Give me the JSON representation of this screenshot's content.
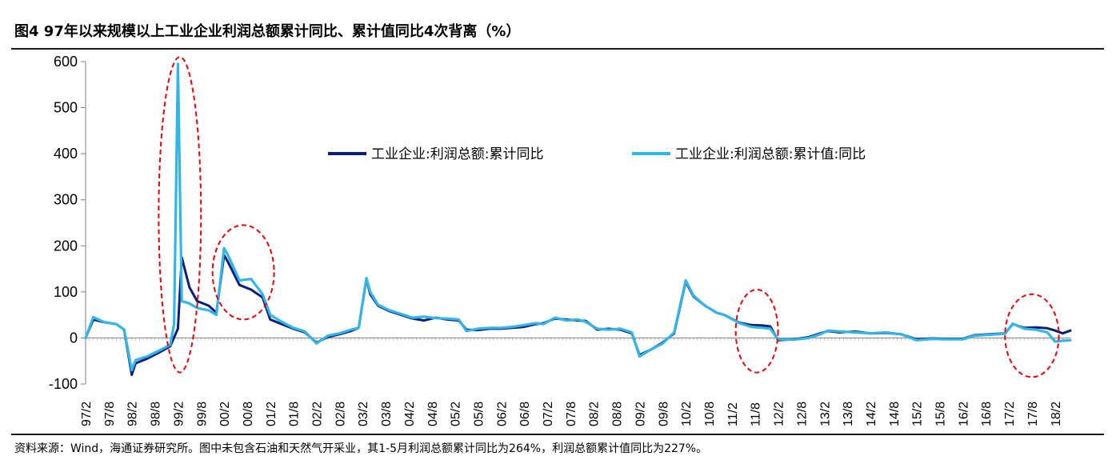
{
  "title": "图4  97年以来规模以上工业企业利润总额累计同比、累计值同比4次背离（%）",
  "source": "资料来源：Wind，海通证券研究所。图中未包含石油和天然气开采业，其1-5月利润总额累计同比为264%，利润总额累计值同比为227%。",
  "chart_data": {
    "type": "line",
    "title": "图4  97年以来规模以上工业企业利润总额累计同比、累计值同比4次背离（%）",
    "ylim": [
      -100,
      600
    ],
    "yticks": [
      600,
      500,
      400,
      300,
      200,
      100,
      0,
      -100
    ],
    "ytick_labels": [
      "600",
      "500",
      "400",
      "300",
      "200",
      "100",
      "0",
      "-100"
    ],
    "xlim": [
      "1997-02",
      "2018-06"
    ],
    "xtick_labels": [
      "97/2",
      "97/8",
      "98/2",
      "98/8",
      "99/2",
      "99/8",
      "00/2",
      "00/8",
      "01/2",
      "01/8",
      "02/2",
      "02/8",
      "03/2",
      "03/8",
      "04/2",
      "04/8",
      "05/2",
      "05/8",
      "06/2",
      "06/8",
      "07/2",
      "07/8",
      "08/2",
      "08/8",
      "09/2",
      "09/8",
      "10/2",
      "10/8",
      "11/2",
      "11/8",
      "12/2",
      "12/8",
      "13/2",
      "13/8",
      "14/2",
      "14/8",
      "15/2",
      "15/8",
      "16/2",
      "16/8",
      "17/2",
      "17/8",
      "18/2"
    ],
    "legend_position": "top-right",
    "grid": false,
    "series": [
      {
        "name": "工业企业:利润总额:累计同比",
        "color": "#0b1f7a",
        "points": [
          [
            "1997-02",
            0
          ],
          [
            "1997-04",
            40
          ],
          [
            "1997-07",
            34
          ],
          [
            "1997-10",
            30
          ],
          [
            "1997-12",
            18
          ],
          [
            "1998-02",
            -80
          ],
          [
            "1998-03",
            -55
          ],
          [
            "1998-06",
            -45
          ],
          [
            "1998-09",
            -32
          ],
          [
            "1998-12",
            -18
          ],
          [
            "1999-02",
            20
          ],
          [
            "1999-03",
            175
          ],
          [
            "1999-05",
            110
          ],
          [
            "1999-07",
            80
          ],
          [
            "1999-10",
            70
          ],
          [
            "1999-12",
            55
          ],
          [
            "2000-02",
            180
          ],
          [
            "2000-03",
            165
          ],
          [
            "2000-06",
            115
          ],
          [
            "2000-09",
            105
          ],
          [
            "2000-12",
            88
          ],
          [
            "2001-02",
            40
          ],
          [
            "2001-05",
            30
          ],
          [
            "2001-08",
            20
          ],
          [
            "2001-11",
            12
          ],
          [
            "2002-02",
            -10
          ],
          [
            "2002-05",
            2
          ],
          [
            "2002-08",
            8
          ],
          [
            "2002-11",
            15
          ],
          [
            "2003-01",
            22
          ],
          [
            "2003-03",
            128
          ],
          [
            "2003-04",
            95
          ],
          [
            "2003-06",
            70
          ],
          [
            "2003-09",
            58
          ],
          [
            "2003-12",
            50
          ],
          [
            "2004-03",
            42
          ],
          [
            "2004-06",
            38
          ],
          [
            "2004-09",
            44
          ],
          [
            "2004-12",
            40
          ],
          [
            "2005-03",
            38
          ],
          [
            "2005-05",
            18
          ],
          [
            "2005-08",
            17
          ],
          [
            "2005-11",
            20
          ],
          [
            "2006-02",
            20
          ],
          [
            "2006-05",
            22
          ],
          [
            "2006-08",
            24
          ],
          [
            "2006-11",
            30
          ],
          [
            "2007-01",
            32
          ],
          [
            "2007-04",
            42
          ],
          [
            "2007-07",
            40
          ],
          [
            "2007-10",
            38
          ],
          [
            "2007-12",
            37
          ],
          [
            "2008-03",
            18
          ],
          [
            "2008-06",
            20
          ],
          [
            "2008-09",
            18
          ],
          [
            "2008-12",
            10
          ],
          [
            "2009-02",
            -37
          ],
          [
            "2009-05",
            -25
          ],
          [
            "2009-08",
            -10
          ],
          [
            "2009-11",
            10
          ],
          [
            "2010-02",
            122
          ],
          [
            "2010-04",
            90
          ],
          [
            "2010-07",
            70
          ],
          [
            "2010-10",
            55
          ],
          [
            "2010-12",
            50
          ],
          [
            "2011-04",
            33
          ],
          [
            "2011-07",
            28
          ],
          [
            "2011-10",
            27
          ],
          [
            "2011-12",
            25
          ],
          [
            "2012-02",
            -5
          ],
          [
            "2012-06",
            -3
          ],
          [
            "2012-10",
            2
          ],
          [
            "2013-01",
            10
          ],
          [
            "2013-03",
            15
          ],
          [
            "2013-06",
            12
          ],
          [
            "2013-10",
            14
          ],
          [
            "2014-02",
            10
          ],
          [
            "2014-06",
            11
          ],
          [
            "2014-10",
            8
          ],
          [
            "2015-02",
            -3
          ],
          [
            "2015-06",
            -1
          ],
          [
            "2015-10",
            -2
          ],
          [
            "2016-02",
            -2
          ],
          [
            "2016-05",
            6
          ],
          [
            "2016-09",
            8
          ],
          [
            "2017-01",
            10
          ],
          [
            "2017-03",
            30
          ],
          [
            "2017-06",
            22
          ],
          [
            "2017-09",
            23
          ],
          [
            "2017-12",
            21
          ],
          [
            "2018-02",
            16
          ],
          [
            "2018-04",
            10
          ],
          [
            "2018-06",
            16
          ]
        ]
      },
      {
        "name": "工业企业:利润总额:累计值:同比",
        "color": "#33b5e8",
        "points": [
          [
            "1997-02",
            0
          ],
          [
            "1997-04",
            45
          ],
          [
            "1997-07",
            34
          ],
          [
            "1997-10",
            30
          ],
          [
            "1997-12",
            18
          ],
          [
            "1998-02",
            -70
          ],
          [
            "1998-03",
            -48
          ],
          [
            "1998-06",
            -40
          ],
          [
            "1998-09",
            -28
          ],
          [
            "1998-12",
            -15
          ],
          [
            "1999-01",
            30
          ],
          [
            "1999-02",
            595
          ],
          [
            "1999-03",
            80
          ],
          [
            "1999-05",
            75
          ],
          [
            "1999-07",
            65
          ],
          [
            "1999-10",
            60
          ],
          [
            "1999-12",
            50
          ],
          [
            "2000-02",
            195
          ],
          [
            "2000-03",
            180
          ],
          [
            "2000-06",
            125
          ],
          [
            "2000-09",
            128
          ],
          [
            "2000-12",
            95
          ],
          [
            "2001-02",
            50
          ],
          [
            "2001-05",
            35
          ],
          [
            "2001-08",
            22
          ],
          [
            "2001-11",
            14
          ],
          [
            "2002-02",
            -12
          ],
          [
            "2002-05",
            5
          ],
          [
            "2002-08",
            10
          ],
          [
            "2002-11",
            18
          ],
          [
            "2003-01",
            22
          ],
          [
            "2003-03",
            130
          ],
          [
            "2003-04",
            100
          ],
          [
            "2003-06",
            72
          ],
          [
            "2003-09",
            60
          ],
          [
            "2003-12",
            52
          ],
          [
            "2004-03",
            44
          ],
          [
            "2004-06",
            46
          ],
          [
            "2004-09",
            43
          ],
          [
            "2004-12",
            42
          ],
          [
            "2005-03",
            40
          ],
          [
            "2005-05",
            15
          ],
          [
            "2005-08",
            20
          ],
          [
            "2005-11",
            22
          ],
          [
            "2006-02",
            22
          ],
          [
            "2006-05",
            24
          ],
          [
            "2006-08",
            28
          ],
          [
            "2006-11",
            32
          ],
          [
            "2007-01",
            30
          ],
          [
            "2007-04",
            44
          ],
          [
            "2007-07",
            38
          ],
          [
            "2007-10",
            40
          ],
          [
            "2007-12",
            35
          ],
          [
            "2008-03",
            20
          ],
          [
            "2008-06",
            18
          ],
          [
            "2008-09",
            20
          ],
          [
            "2008-12",
            12
          ],
          [
            "2009-02",
            -40
          ],
          [
            "2009-05",
            -25
          ],
          [
            "2009-08",
            -12
          ],
          [
            "2009-11",
            12
          ],
          [
            "2010-02",
            125
          ],
          [
            "2010-04",
            92
          ],
          [
            "2010-07",
            70
          ],
          [
            "2010-10",
            55
          ],
          [
            "2010-12",
            50
          ],
          [
            "2011-04",
            32
          ],
          [
            "2011-07",
            24
          ],
          [
            "2011-10",
            22
          ],
          [
            "2011-12",
            20
          ],
          [
            "2012-02",
            -3
          ],
          [
            "2012-06",
            -4
          ],
          [
            "2012-10",
            0
          ],
          [
            "2013-01",
            8
          ],
          [
            "2013-03",
            16
          ],
          [
            "2013-06",
            14
          ],
          [
            "2013-10",
            12
          ],
          [
            "2014-02",
            10
          ],
          [
            "2014-06",
            12
          ],
          [
            "2014-10",
            8
          ],
          [
            "2015-02",
            -5
          ],
          [
            "2015-06",
            -2
          ],
          [
            "2015-10",
            -3
          ],
          [
            "2016-02",
            -3
          ],
          [
            "2016-05",
            5
          ],
          [
            "2016-09",
            7
          ],
          [
            "2017-01",
            9
          ],
          [
            "2017-03",
            31
          ],
          [
            "2017-06",
            20
          ],
          [
            "2017-09",
            18
          ],
          [
            "2017-12",
            12
          ],
          [
            "2018-02",
            -8
          ],
          [
            "2018-04",
            -6
          ],
          [
            "2018-06",
            -5
          ]
        ]
      }
    ],
    "divergence_marks": [
      {
        "label": "1",
        "x_range": [
          "1998-09",
          "1999-08"
        ],
        "y_range": [
          -75,
          610
        ]
      },
      {
        "label": "2",
        "x_range": [
          "1999-11",
          "2001-03"
        ],
        "y_range": [
          40,
          245
        ]
      },
      {
        "label": "3",
        "x_range": [
          "2011-03",
          "2012-02"
        ],
        "y_range": [
          -75,
          105
        ]
      },
      {
        "label": "4",
        "x_range": [
          "2017-01",
          "2018-03"
        ],
        "y_range": [
          -85,
          95
        ]
      }
    ]
  }
}
